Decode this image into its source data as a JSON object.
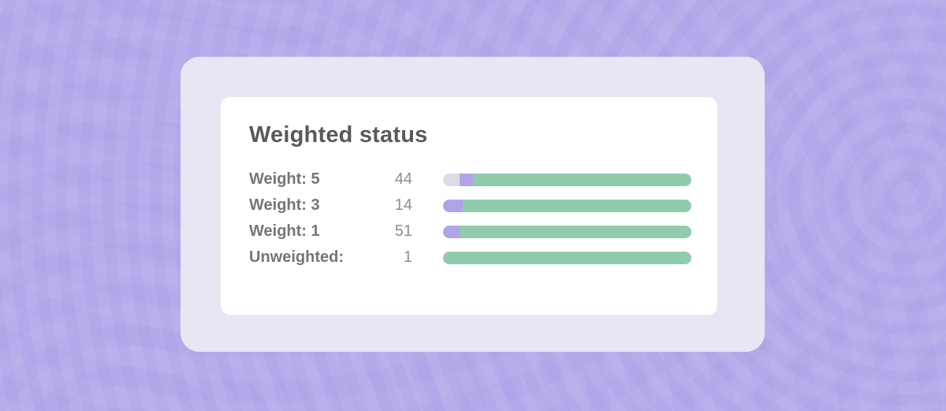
{
  "theme": {
    "background": "#b0a5e9",
    "panel": "#e6e7f3",
    "card": "#ffffff",
    "title_color": "#595a5c",
    "label_color": "#757578",
    "value_color": "#8e8e92",
    "segment_colors": {
      "pending": "#dadde6",
      "in-progress": "#b0a4e8",
      "done": "#90ccab"
    }
  },
  "card": {
    "title": "Weighted status",
    "rows": [
      {
        "label": "Weight: 5",
        "value": "44",
        "segments": [
          {
            "name": "pending",
            "percent": 6.7
          },
          {
            "name": "in-progress",
            "percent": 5.8
          },
          {
            "name": "done",
            "percent": 87.5
          }
        ]
      },
      {
        "label": "Weight: 3",
        "value": "14",
        "segments": [
          {
            "name": "in-progress",
            "percent": 8.0
          },
          {
            "name": "done",
            "percent": 92.0
          }
        ]
      },
      {
        "label": "Weight: 1",
        "value": "51",
        "segments": [
          {
            "name": "in-progress",
            "percent": 6.7
          },
          {
            "name": "done",
            "percent": 93.3
          }
        ]
      },
      {
        "label": "Unweighted:",
        "value": "1",
        "segments": [
          {
            "name": "done",
            "percent": 100
          }
        ]
      }
    ]
  }
}
